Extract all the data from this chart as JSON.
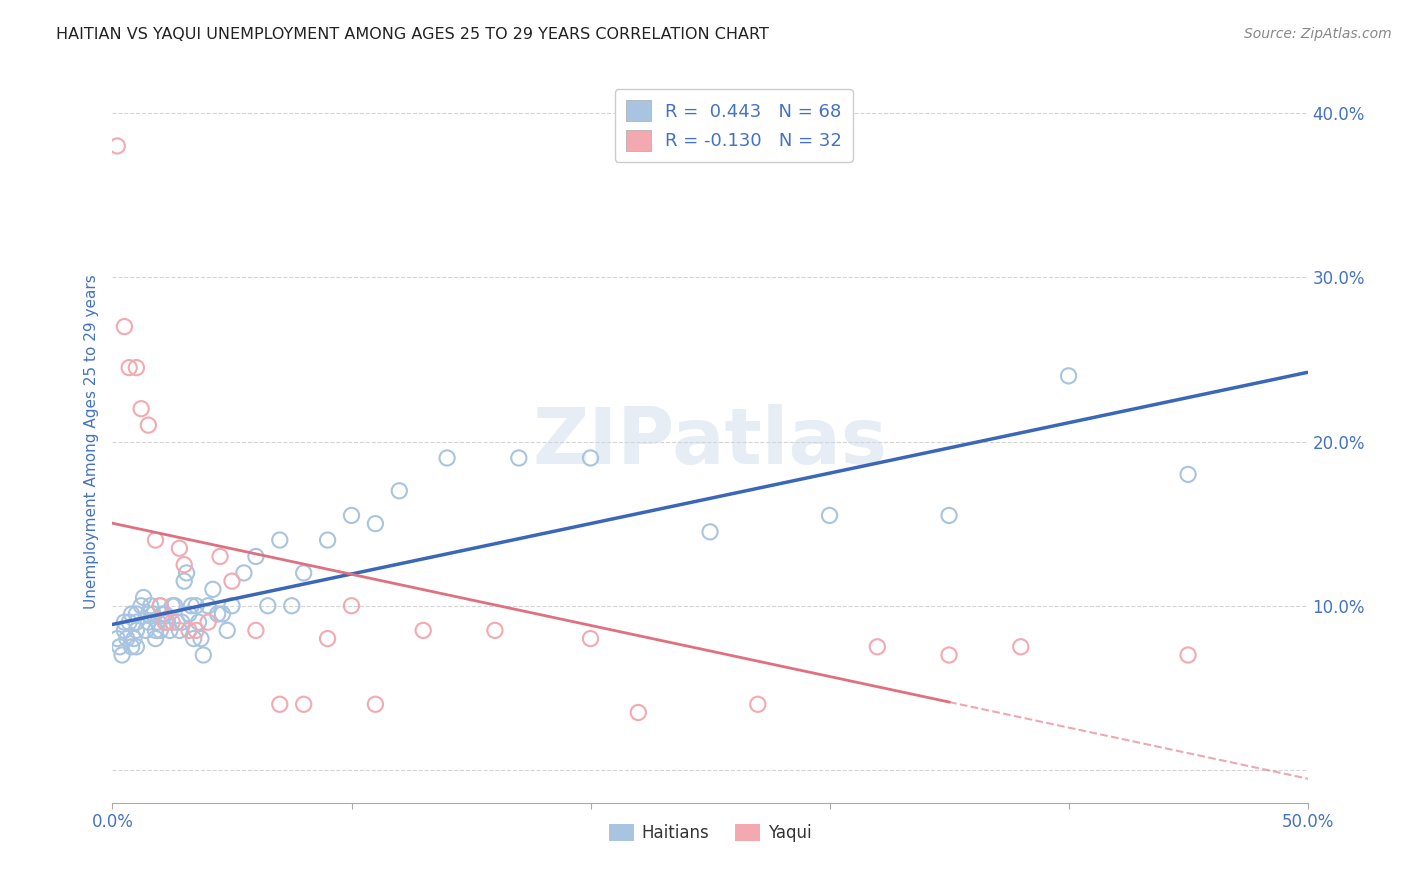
{
  "title": "HAITIAN VS YAQUI UNEMPLOYMENT AMONG AGES 25 TO 29 YEARS CORRELATION CHART",
  "source": "Source: ZipAtlas.com",
  "ylabel": "Unemployment Among Ages 25 to 29 years",
  "xlim": [
    0.0,
    0.5
  ],
  "ylim": [
    -0.02,
    0.42
  ],
  "xticks": [
    0.0,
    0.1,
    0.2,
    0.3,
    0.4,
    0.5
  ],
  "xtick_labels": [
    "0.0%",
    "",
    "",
    "",
    "",
    "50.0%"
  ],
  "yticks": [
    0.0,
    0.1,
    0.2,
    0.3,
    0.4
  ],
  "ytick_labels_right": [
    "",
    "10.0%",
    "20.0%",
    "30.0%",
    "40.0%"
  ],
  "haitian_color": "#a8c4e0",
  "yaqui_color": "#f4a9b0",
  "haitian_line_color": "#3a67b8",
  "yaqui_line_color": "#e07080",
  "legend_haitian_label": "R =  0.443   N = 68",
  "legend_yaqui_label": "R = -0.130   N = 32",
  "haitian_scatter_x": [
    0.002,
    0.003,
    0.004,
    0.005,
    0.005,
    0.006,
    0.007,
    0.008,
    0.008,
    0.009,
    0.01,
    0.01,
    0.01,
    0.01,
    0.012,
    0.013,
    0.014,
    0.015,
    0.015,
    0.016,
    0.017,
    0.018,
    0.018,
    0.019,
    0.02,
    0.02,
    0.021,
    0.022,
    0.023,
    0.024,
    0.025,
    0.026,
    0.027,
    0.028,
    0.029,
    0.03,
    0.031,
    0.032,
    0.033,
    0.034,
    0.035,
    0.036,
    0.037,
    0.038,
    0.04,
    0.042,
    0.044,
    0.046,
    0.048,
    0.05,
    0.055,
    0.06,
    0.065,
    0.07,
    0.075,
    0.08,
    0.09,
    0.1,
    0.11,
    0.12,
    0.14,
    0.17,
    0.2,
    0.25,
    0.3,
    0.35,
    0.4,
    0.45
  ],
  "haitian_scatter_y": [
    0.08,
    0.075,
    0.07,
    0.09,
    0.085,
    0.08,
    0.09,
    0.095,
    0.075,
    0.08,
    0.095,
    0.085,
    0.075,
    0.09,
    0.1,
    0.105,
    0.085,
    0.09,
    0.095,
    0.1,
    0.095,
    0.08,
    0.085,
    0.09,
    0.1,
    0.085,
    0.095,
    0.095,
    0.09,
    0.085,
    0.1,
    0.1,
    0.09,
    0.085,
    0.09,
    0.115,
    0.12,
    0.095,
    0.1,
    0.08,
    0.1,
    0.09,
    0.08,
    0.07,
    0.1,
    0.11,
    0.095,
    0.095,
    0.085,
    0.1,
    0.12,
    0.13,
    0.1,
    0.14,
    0.1,
    0.12,
    0.14,
    0.155,
    0.15,
    0.17,
    0.19,
    0.19,
    0.19,
    0.145,
    0.155,
    0.155,
    0.24,
    0.18
  ],
  "yaqui_scatter_x": [
    0.002,
    0.005,
    0.007,
    0.01,
    0.012,
    0.015,
    0.018,
    0.02,
    0.022,
    0.025,
    0.028,
    0.03,
    0.032,
    0.035,
    0.04,
    0.045,
    0.05,
    0.06,
    0.07,
    0.08,
    0.09,
    0.1,
    0.11,
    0.13,
    0.16,
    0.2,
    0.22,
    0.27,
    0.32,
    0.35,
    0.38,
    0.45
  ],
  "yaqui_scatter_y": [
    0.38,
    0.27,
    0.245,
    0.245,
    0.22,
    0.21,
    0.14,
    0.1,
    0.09,
    0.09,
    0.135,
    0.125,
    0.085,
    0.085,
    0.09,
    0.13,
    0.115,
    0.085,
    0.04,
    0.04,
    0.08,
    0.1,
    0.04,
    0.085,
    0.085,
    0.08,
    0.035,
    0.04,
    0.075,
    0.07,
    0.075,
    0.07
  ],
  "watermark_text": "ZIPatlas",
  "background_color": "#ffffff",
  "grid_color": "#d0d0d0",
  "title_color": "#222222",
  "axis_label_color": "#4472c4",
  "tick_color": "#4472c4",
  "legend_text_color": "#4472c4"
}
